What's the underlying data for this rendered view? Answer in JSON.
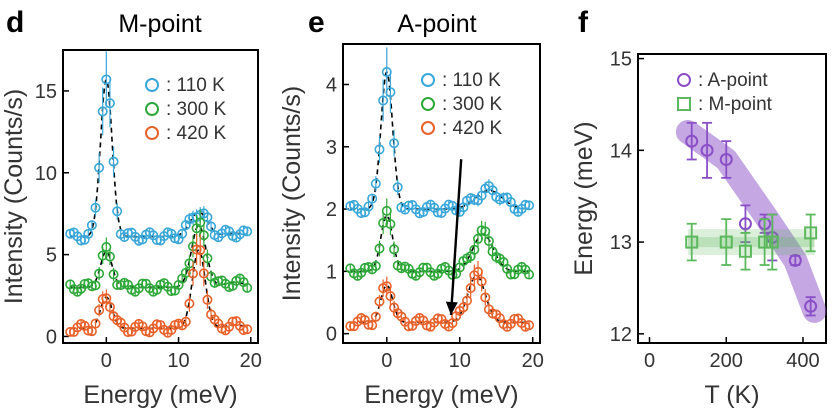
{
  "panels": [
    {
      "letter": "d",
      "title": "M-point"
    },
    {
      "letter": "e",
      "title": "A-point"
    },
    {
      "letter": "f",
      "title": ""
    }
  ],
  "colors": {
    "k110": "#3aa7d9",
    "k300": "#2fa83a",
    "k420": "#e8612a",
    "a_point": "#8a4fc7",
    "m_point": "#5cb85c"
  },
  "chart_data": [
    {
      "type": "scatter",
      "panel": "d",
      "title": "M-point",
      "xlabel": "Energy (meV)",
      "ylabel": "Intensity (Counts/s)",
      "xlim": [
        -6,
        21
      ],
      "ylim": [
        -0.4,
        17.5
      ],
      "xticks": [
        0,
        10,
        20
      ],
      "yticks": [
        0,
        5,
        10,
        15
      ],
      "legend_position": "top-right",
      "series": [
        {
          "name": ": 110 K",
          "color": "#3aa7d9",
          "offset": 6.1,
          "peaks": [
            [
              0,
              9.6,
              0.8
            ],
            [
              12.8,
              1.5,
              1.2
            ],
            [
              17.8,
              0.2,
              1.5
            ]
          ]
        },
        {
          "name": ": 300 K",
          "color": "#2fa83a",
          "offset": 3.0,
          "peaks": [
            [
              0,
              2.2,
              0.8
            ],
            [
              12.8,
              3.8,
              1.0
            ],
            [
              17.8,
              0.3,
              1.5
            ]
          ]
        },
        {
          "name": ": 420 K",
          "color": "#e8612a",
          "offset": 0.5,
          "peaks": [
            [
              0,
              1.9,
              0.8
            ],
            [
              12.8,
              4.8,
              0.9
            ],
            [
              17.8,
              0.2,
              1.5
            ]
          ]
        }
      ]
    },
    {
      "type": "scatter",
      "panel": "e",
      "title": "A-point",
      "xlabel": "Energy (meV)",
      "ylabel": "Intensity (Counts/s)",
      "xlim": [
        -6,
        21
      ],
      "ylim": [
        -0.15,
        4.65
      ],
      "xticks": [
        0,
        10,
        20
      ],
      "yticks": [
        0,
        1,
        2,
        3,
        4
      ],
      "legend_position": "top-right",
      "series": [
        {
          "name": ": 110 K",
          "color": "#3aa7d9",
          "offset": 2.0,
          "peaks": [
            [
              0,
              2.2,
              0.8
            ],
            [
              14.0,
              0.3,
              1.8
            ]
          ]
        },
        {
          "name": ": 300 K",
          "color": "#2fa83a",
          "offset": 1.0,
          "peaks": [
            [
              0,
              0.9,
              0.8
            ],
            [
              13.2,
              0.6,
              1.4
            ]
          ]
        },
        {
          "name": ": 420 K",
          "color": "#e8612a",
          "offset": 0.18,
          "peaks": [
            [
              0,
              0.6,
              0.8
            ],
            [
              12.3,
              0.75,
              1.2
            ]
          ]
        }
      ],
      "annotation": {
        "type": "arrow",
        "from": [
          10.2,
          2.8
        ],
        "to": [
          8.8,
          0.3
        ]
      }
    },
    {
      "type": "scatter",
      "panel": "f",
      "title": "",
      "xlabel": "T (K)",
      "ylabel": "Energy (meV)",
      "xlim": [
        -30,
        460
      ],
      "ylim": [
        11.9,
        15.05
      ],
      "xticks": [
        0,
        200,
        400
      ],
      "yticks": [
        12,
        13,
        14,
        15
      ],
      "legend_position": "top-right",
      "series": [
        {
          "name": ": A-point",
          "marker": "circle",
          "color": "#8a4fc7",
          "points": [
            [
              110,
              14.1,
              0.2
            ],
            [
              150,
              14.0,
              0.3
            ],
            [
              200,
              13.9,
              0.2
            ],
            [
              250,
              13.2,
              0.2
            ],
            [
              300,
              13.2,
              0.1
            ],
            [
              320,
              13.05,
              0.25
            ],
            [
              380,
              12.8,
              0.05
            ],
            [
              420,
              12.3,
              0.1
            ]
          ],
          "band": [
            [
              100,
              14.2
            ],
            [
              200,
              13.9
            ],
            [
              300,
              13.3
            ],
            [
              380,
              12.8
            ],
            [
              430,
              12.25
            ]
          ]
        },
        {
          "name": ": M-point",
          "marker": "square",
          "color": "#5cb85c",
          "points": [
            [
              110,
              13.0,
              0.2
            ],
            [
              200,
              13.0,
              0.25
            ],
            [
              250,
              12.9,
              0.2
            ],
            [
              300,
              13.0,
              0.25
            ],
            [
              320,
              13.0,
              0.3
            ],
            [
              420,
              13.1,
              0.2
            ]
          ],
          "band": [
            [
              100,
              13.0
            ],
            [
              430,
              13.0
            ]
          ]
        }
      ]
    }
  ]
}
